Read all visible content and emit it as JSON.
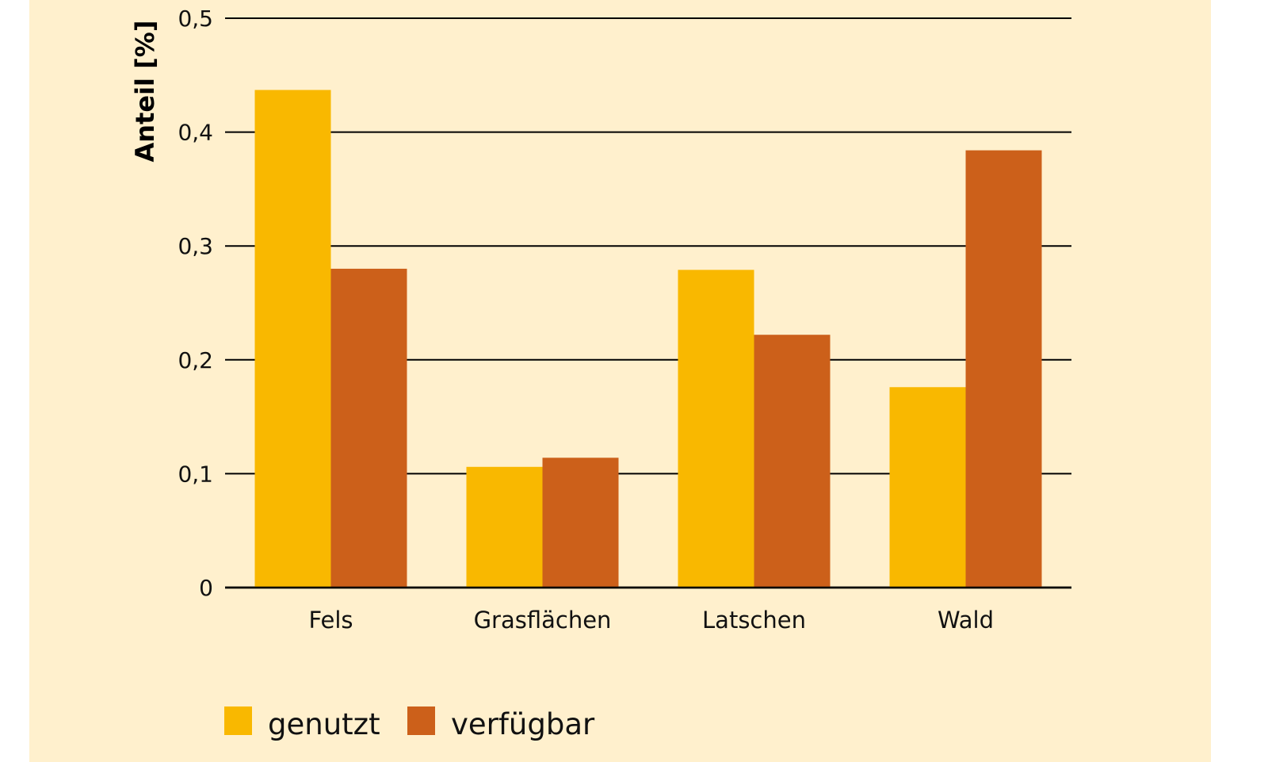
{
  "colors": {
    "background": "#fff0cd",
    "genutzt": "#f9b800",
    "verfuegbar": "#cc601a",
    "gridline": "#000000"
  },
  "chart_data": {
    "type": "bar",
    "ylabel": "Anteil [%]",
    "xlabel": "",
    "ylim": [
      0,
      0.5
    ],
    "yticks": [
      0,
      0.1,
      0.2,
      0.3,
      0.4,
      0.5
    ],
    "ytick_labels": [
      "0",
      "0,1",
      "0,2",
      "0,3",
      "0,4",
      "0,5"
    ],
    "grid": true,
    "legend_position": "bottom-left",
    "categories": [
      "Fels",
      "Grasflächen",
      "Latschen",
      "Wald"
    ],
    "series": [
      {
        "name": "genutzt",
        "color": "#f9b800",
        "values": [
          0.437,
          0.106,
          0.279,
          0.176
        ]
      },
      {
        "name": "verfügbar",
        "color": "#cc601a",
        "values": [
          0.28,
          0.114,
          0.222,
          0.384
        ]
      }
    ]
  }
}
